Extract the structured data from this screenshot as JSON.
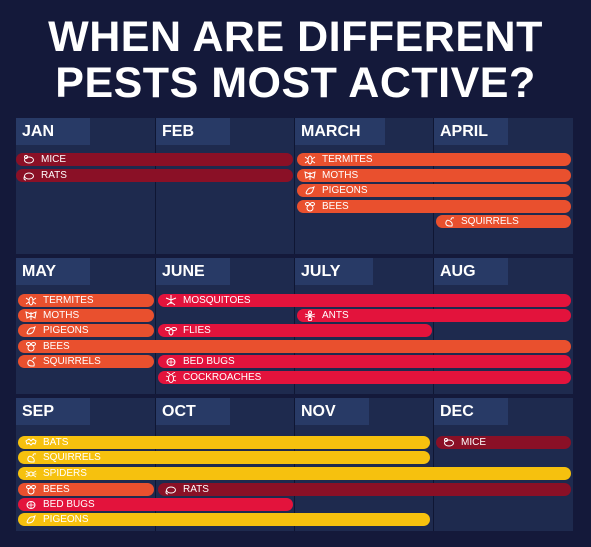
{
  "title": {
    "line1": "WHEN ARE DIFFERENT",
    "line2": "PESTS MOST ACTIVE?"
  },
  "colors": {
    "background": "#14193a",
    "panel": "#1e2a4e",
    "month_tab": "#283a66",
    "dark_red": "#8a1026",
    "orange": "#e9502e",
    "pink_red": "#e3133c",
    "yellow": "#f6c10e"
  },
  "rows": [
    {
      "months": [
        "JAN",
        "FEB",
        "MARCH",
        "APRIL"
      ],
      "bars": [
        "MICE",
        "RATS",
        "TERMITES",
        "MOTHS",
        "PIGEONS",
        "BEES",
        "SQUIRRELS"
      ]
    },
    {
      "months": [
        "MAY",
        "JUNE",
        "JULY",
        "AUG"
      ],
      "bars": [
        "TERMITES",
        "MOTHS",
        "PIGEONS",
        "BEES",
        "SQUIRRELS",
        "MOSQUITOES",
        "ANTS",
        "FLIES",
        "BED BUGS",
        "COCKROACHES"
      ]
    },
    {
      "months": [
        "SEP",
        "OCT",
        "NOV",
        "DEC"
      ],
      "bars": [
        "BATS",
        "SQUIRRELS",
        "SPIDERS",
        "BEES",
        "RATS",
        "BED BUGS",
        "PIGEONS",
        "MICE"
      ]
    }
  ]
}
